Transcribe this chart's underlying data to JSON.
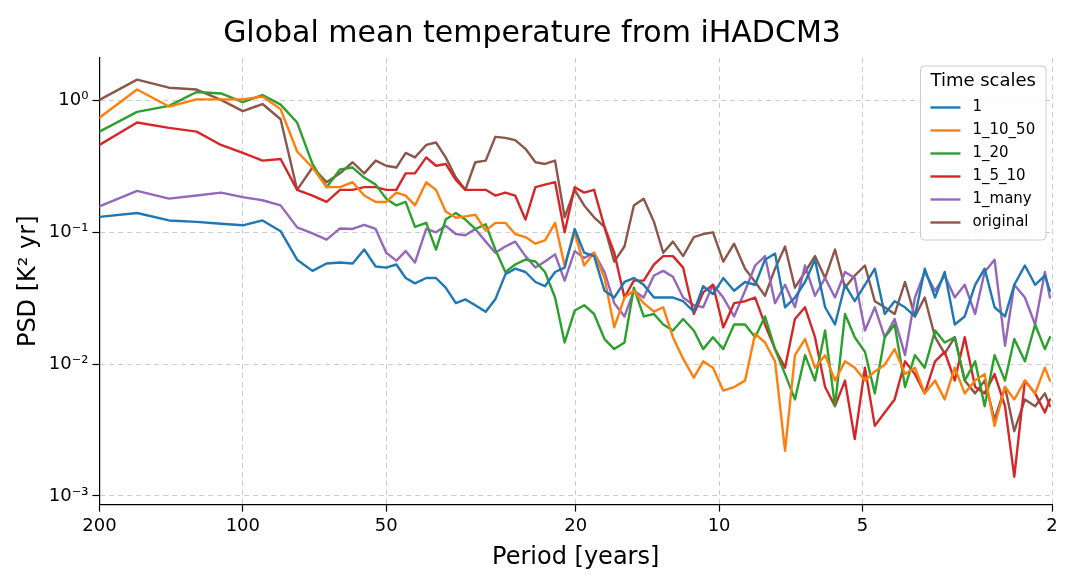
{
  "chart_data": {
    "type": "line",
    "title": "Global mean temperature from iHADCM3",
    "xlabel": "Period [years]",
    "ylabel": "PSD [K² yr]",
    "legend_title": "Time scales",
    "legend": "top right",
    "grid": true,
    "log": "xy",
    "line_style": "solid",
    "xlim": [
      200,
      2
    ],
    "xticks": [
      200,
      100,
      50,
      20,
      10,
      5,
      2
    ],
    "ylim": [
      0.00086,
      2.1
    ],
    "yticks": [
      {
        "value": 0.001,
        "label": "10⁻³"
      },
      {
        "value": 0.01,
        "label": "10⁻²"
      },
      {
        "value": 0.1,
        "label": "10⁻¹"
      },
      {
        "value": 1,
        "label": "10⁰"
      }
    ],
    "x": [
      200,
      166.7,
      142.9,
      125,
      111.1,
      100,
      90.9,
      83.3,
      76.9,
      71.4,
      66.7,
      62.5,
      58.8,
      55.6,
      52.6,
      50,
      47.6,
      45.5,
      43.5,
      41.2,
      39.3,
      37.5,
      35.7,
      34.1,
      32.5,
      30.9,
      29.5,
      28.1,
      26.8,
      25.5,
      24.3,
      23.2,
      22.1,
      21.1,
      20.1,
      19.2,
      18.3,
      17.4,
      16.6,
      15.8,
      15.1,
      14.4,
      13.7,
      13.1,
      12.5,
      11.9,
      11.3,
      10.8,
      10.3,
      9.8,
      9.3,
      8.82,
      8.4,
      8.01,
      7.63,
      7.27,
      6.93,
      6.6,
      6.29,
      5.99,
      5.71,
      5.44,
      5.19,
      4.94,
      4.71,
      4.49,
      4.28,
      4.07,
      3.88,
      3.7,
      3.52,
      3.36,
      3.2,
      3.05,
      2.9,
      2.77,
      2.64,
      2.51,
      2.4,
      2.28,
      2.17,
      2.07,
      2.02
    ],
    "series": [
      {
        "name": "1",
        "color": "#1f77b4",
        "values": [
          0.131,
          0.14,
          0.123,
          0.12,
          0.116,
          0.113,
          0.123,
          0.102,
          0.062,
          0.051,
          0.058,
          0.059,
          0.058,
          0.074,
          0.055,
          0.054,
          0.057,
          0.045,
          0.041,
          0.045,
          0.045,
          0.038,
          0.029,
          0.031,
          0.028,
          0.025,
          0.031,
          0.048,
          0.053,
          0.05,
          0.042,
          0.039,
          0.05,
          0.054,
          0.106,
          0.07,
          0.066,
          0.036,
          0.032,
          0.042,
          0.045,
          0.04,
          0.032,
          0.032,
          0.032,
          0.03,
          0.025,
          0.039,
          0.034,
          0.045,
          0.036,
          0.042,
          0.04,
          0.062,
          0.069,
          0.027,
          0.032,
          0.042,
          0.062,
          0.027,
          0.02,
          0.04,
          0.03,
          0.04,
          0.053,
          0.024,
          0.03,
          0.027,
          0.023,
          0.053,
          0.032,
          0.05,
          0.02,
          0.023,
          0.04,
          0.053,
          0.027,
          0.023,
          0.04,
          0.056,
          0.04,
          0.047,
          0.036
        ]
      },
      {
        "name": "1_10_50",
        "color": "#ff7f0e",
        "values": [
          0.74,
          1.21,
          0.9,
          1.02,
          1.02,
          1.02,
          1.07,
          0.86,
          0.41,
          0.31,
          0.22,
          0.22,
          0.24,
          0.19,
          0.17,
          0.17,
          0.2,
          0.19,
          0.16,
          0.24,
          0.21,
          0.144,
          0.129,
          0.132,
          0.136,
          0.103,
          0.118,
          0.118,
          0.097,
          0.092,
          0.082,
          0.087,
          0.118,
          0.056,
          0.1,
          0.056,
          0.07,
          0.045,
          0.019,
          0.032,
          0.036,
          0.029,
          0.025,
          0.027,
          0.016,
          0.011,
          0.0079,
          0.0105,
          0.0094,
          0.0063,
          0.0067,
          0.0075,
          0.017,
          0.0146,
          0.0105,
          0.0022,
          0.0117,
          0.0155,
          0.0094,
          0.0117,
          0.0075,
          0.0105,
          0.0094,
          0.0075,
          0.0088,
          0.0099,
          0.013,
          0.0084,
          0.0094,
          0.006,
          0.0075,
          0.0054,
          0.0094,
          0.006,
          0.0075,
          0.0084,
          0.0034,
          0.0067,
          0.0054,
          0.0075,
          0.006,
          0.0094,
          0.0075
        ]
      },
      {
        "name": "1_20",
        "color": "#2ca02c",
        "values": [
          0.58,
          0.82,
          0.91,
          1.16,
          1.13,
          0.97,
          1.1,
          0.93,
          0.68,
          0.33,
          0.22,
          0.3,
          0.31,
          0.26,
          0.23,
          0.18,
          0.16,
          0.17,
          0.11,
          0.118,
          0.074,
          0.125,
          0.14,
          0.125,
          0.106,
          0.115,
          0.074,
          0.05,
          0.057,
          0.062,
          0.06,
          0.05,
          0.032,
          0.0146,
          0.0255,
          0.028,
          0.024,
          0.0155,
          0.013,
          0.0146,
          0.038,
          0.023,
          0.024,
          0.02,
          0.018,
          0.022,
          0.018,
          0.013,
          0.016,
          0.013,
          0.02,
          0.02,
          0.016,
          0.023,
          0.013,
          0.0084,
          0.0054,
          0.0117,
          0.0075,
          0.018,
          0.0048,
          0.024,
          0.016,
          0.0124,
          0.006,
          0.016,
          0.02,
          0.0067,
          0.0117,
          0.0094,
          0.018,
          0.0146,
          0.016,
          0.0075,
          0.0105,
          0.0048,
          0.0117,
          0.0075,
          0.0155,
          0.0105,
          0.02,
          0.013,
          0.016
        ]
      },
      {
        "name": "1_5_10",
        "color": "#d62728",
        "values": [
          0.46,
          0.68,
          0.62,
          0.58,
          0.46,
          0.4,
          0.35,
          0.36,
          0.21,
          0.19,
          0.17,
          0.21,
          0.21,
          0.22,
          0.22,
          0.21,
          0.21,
          0.28,
          0.28,
          0.37,
          0.32,
          0.33,
          0.25,
          0.21,
          0.21,
          0.21,
          0.19,
          0.2,
          0.19,
          0.125,
          0.22,
          0.23,
          0.24,
          0.1,
          0.22,
          0.2,
          0.21,
          0.11,
          0.07,
          0.032,
          0.043,
          0.043,
          0.057,
          0.066,
          0.066,
          0.054,
          0.024,
          0.035,
          0.04,
          0.019,
          0.029,
          0.03,
          0.032,
          0.02,
          0.013,
          0.0094,
          0.022,
          0.027,
          0.016,
          0.0067,
          0.0048,
          0.0075,
          0.0027,
          0.0094,
          0.0034,
          0.0043,
          0.0054,
          0.0105,
          0.0084,
          0.006,
          0.0105,
          0.0124,
          0.0075,
          0.016,
          0.0067,
          0.006,
          0.0084,
          0.0048,
          0.0014,
          0.0075,
          0.006,
          0.0043,
          0.0054
        ]
      },
      {
        "name": "1_many",
        "color": "#9467bd",
        "values": [
          0.157,
          0.206,
          0.18,
          0.19,
          0.2,
          0.185,
          0.175,
          0.16,
          0.109,
          0.098,
          0.088,
          0.107,
          0.106,
          0.114,
          0.106,
          0.07,
          0.061,
          0.072,
          0.059,
          0.106,
          0.1,
          0.112,
          0.097,
          0.095,
          0.106,
          0.085,
          0.07,
          0.078,
          0.085,
          0.066,
          0.054,
          0.06,
          0.068,
          0.043,
          0.072,
          0.064,
          0.07,
          0.05,
          0.029,
          0.023,
          0.036,
          0.032,
          0.047,
          0.051,
          0.046,
          0.032,
          0.028,
          0.027,
          0.04,
          0.032,
          0.023,
          0.036,
          0.056,
          0.066,
          0.029,
          0.04,
          0.027,
          0.056,
          0.033,
          0.045,
          0.032,
          0.05,
          0.045,
          0.018,
          0.027,
          0.016,
          0.022,
          0.0117,
          0.032,
          0.05,
          0.036,
          0.047,
          0.032,
          0.04,
          0.024,
          0.05,
          0.062,
          0.0138,
          0.04,
          0.032,
          0.02,
          0.05,
          0.032
        ]
      },
      {
        "name": "original",
        "color": "#8c564b",
        "values": [
          1.01,
          1.44,
          1.25,
          1.21,
          1.01,
          0.83,
          0.94,
          0.72,
          0.21,
          0.31,
          0.24,
          0.28,
          0.34,
          0.28,
          0.35,
          0.32,
          0.31,
          0.4,
          0.37,
          0.46,
          0.48,
          0.37,
          0.26,
          0.21,
          0.34,
          0.35,
          0.53,
          0.52,
          0.5,
          0.43,
          0.34,
          0.33,
          0.35,
          0.13,
          0.21,
          0.16,
          0.13,
          0.11,
          0.06,
          0.078,
          0.16,
          0.18,
          0.12,
          0.07,
          0.085,
          0.066,
          0.092,
          0.097,
          0.1,
          0.06,
          0.082,
          0.053,
          0.042,
          0.033,
          0.053,
          0.078,
          0.038,
          0.05,
          0.066,
          0.045,
          0.074,
          0.038,
          0.047,
          0.056,
          0.03,
          0.027,
          0.024,
          0.042,
          0.023,
          0.032,
          0.016,
          0.012,
          0.016,
          0.0075,
          0.006,
          0.0075,
          0.0038,
          0.0067,
          0.0031,
          0.0054,
          0.0048,
          0.006,
          0.0048
        ]
      }
    ]
  }
}
